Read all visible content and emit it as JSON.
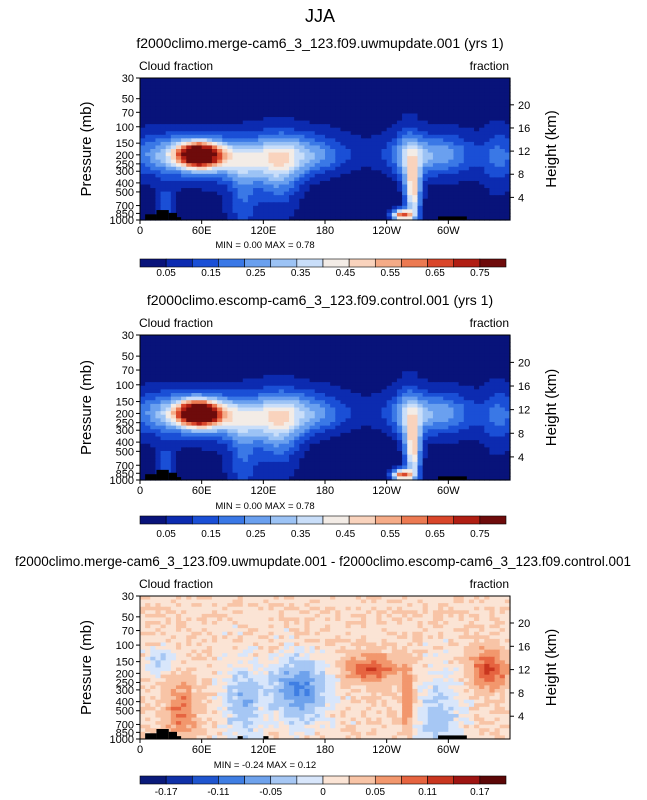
{
  "chart_data": {
    "type": "heatmap",
    "season_title": "JJA",
    "panels": [
      {
        "title": "f2000climo.merge-cam6_3_123.f09.uwmupdate.001 (yrs 1)",
        "left_label": "Cloud fraction",
        "right_label": "fraction",
        "ylabel": "Pressure (mb)",
        "ylabel_right": "Height (km)",
        "x_ticks": [
          "0",
          "60E",
          "120E",
          "180",
          "120W",
          "60W"
        ],
        "y_ticks": [
          "30",
          "50",
          "70",
          "100",
          "150",
          "200",
          "250",
          "300",
          "400",
          "500",
          "700",
          "850",
          "1000"
        ],
        "height_ticks": [
          "4",
          "8",
          "12",
          "16",
          "20"
        ],
        "stats": "MIN =    0.00   MAX =    0.78",
        "colorbar_labels": [
          "0.05",
          "0.15",
          "0.25",
          "0.35",
          "0.45",
          "0.55",
          "0.65",
          "0.75"
        ],
        "min": 0.0,
        "max": 0.78,
        "diff": false
      },
      {
        "title": "f2000climo.escomp-cam6_3_123.f09.control.001 (yrs 1)",
        "left_label": "Cloud fraction",
        "right_label": "fraction",
        "ylabel": "Pressure (mb)",
        "ylabel_right": "Height (km)",
        "x_ticks": [
          "0",
          "60E",
          "120E",
          "180",
          "120W",
          "60W"
        ],
        "y_ticks": [
          "30",
          "50",
          "70",
          "100",
          "150",
          "200",
          "250",
          "300",
          "400",
          "500",
          "700",
          "850",
          "1000"
        ],
        "height_ticks": [
          "4",
          "8",
          "12",
          "16",
          "20"
        ],
        "stats": "MIN =    0.00   MAX =    0.78",
        "colorbar_labels": [
          "0.05",
          "0.15",
          "0.25",
          "0.35",
          "0.45",
          "0.55",
          "0.65",
          "0.75"
        ],
        "min": 0.0,
        "max": 0.78,
        "diff": false
      },
      {
        "title": "f2000climo.merge-cam6_3_123.f09.uwmupdate.001 - f2000climo.escomp-cam6_3_123.f09.control.001",
        "left_label": "Cloud fraction",
        "right_label": "fraction",
        "ylabel": "Pressure (mb)",
        "ylabel_right": "Height (km)",
        "x_ticks": [
          "0",
          "60E",
          "120E",
          "180",
          "120W",
          "60W"
        ],
        "y_ticks": [
          "30",
          "50",
          "70",
          "100",
          "150",
          "200",
          "250",
          "300",
          "400",
          "500",
          "700",
          "850",
          "1000"
        ],
        "height_ticks": [
          "4",
          "8",
          "12",
          "16",
          "20"
        ],
        "stats": "MIN =  -0.24   MAX =    0.12",
        "colorbar_labels": [
          "-0.17",
          "-0.11",
          "-0.05",
          "0",
          "0.05",
          "0.11",
          "0.17"
        ],
        "min": -0.24,
        "max": 0.12,
        "diff": true
      }
    ],
    "colormap_main": [
      "#08137a",
      "#0c2bb0",
      "#1a4fd6",
      "#3a78e6",
      "#6aa0ef",
      "#9cc3f5",
      "#c9def9",
      "#f3ece6",
      "#f9d3bd",
      "#f5ab87",
      "#ec7a52",
      "#d9462a",
      "#b01e13",
      "#6e0b0b"
    ],
    "colormap_diff": [
      "#0a1a7a",
      "#1031a8",
      "#1f55cf",
      "#3f7ee3",
      "#6ea2ec",
      "#a6c7f4",
      "#d8e6fb",
      "#fbe4d5",
      "#f8c4a6",
      "#f2976d",
      "#e66440",
      "#c9361f",
      "#9e1412",
      "#5c0707"
    ]
  }
}
